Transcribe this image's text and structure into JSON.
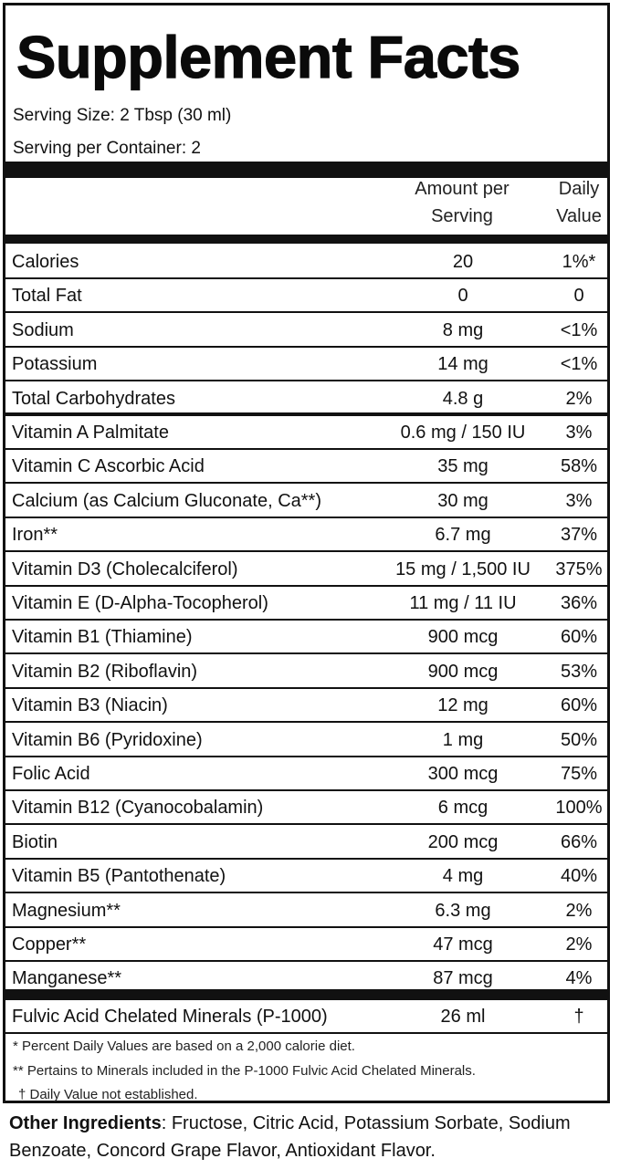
{
  "title": "Supplement Facts",
  "serving_size": "Serving Size: 2 Tbsp  (30 ml)",
  "servings_per_container": "Serving per Container: 2",
  "headers": {
    "amount_line1": "Amount per",
    "amount_line2": "Serving",
    "dv_line1": "Daily",
    "dv_line2": "Value"
  },
  "rows": [
    {
      "name": "Calories",
      "amount": "20",
      "dv": "1%*"
    },
    {
      "name": "Total Fat",
      "amount": "0",
      "dv": "0"
    },
    {
      "name": "Sodium",
      "amount": "8 mg",
      "dv": "<1%"
    },
    {
      "name": "Potassium",
      "amount": "14 mg",
      "dv": "<1%"
    },
    {
      "name": "Total Carbohydrates",
      "amount": "4.8 g",
      "dv": "2%"
    },
    {
      "name": "Vitamin A Palmitate",
      "amount": "0.6 mg / 150 IU",
      "dv": "3%"
    },
    {
      "name": "Vitamin C Ascorbic Acid",
      "amount": "35 mg",
      "dv": "58%"
    },
    {
      "name": "Calcium (as Calcium Gluconate, Ca**)",
      "amount": "30 mg",
      "dv": "3%"
    },
    {
      "name": "Iron**",
      "amount": "6.7 mg",
      "dv": "37%"
    },
    {
      "name": "Vitamin D3 (Cholecalciferol)",
      "amount": "15 mg / 1,500 IU",
      "dv": "375%"
    },
    {
      "name": "Vitamin E (D-Alpha-Tocopherol)",
      "amount": "11 mg / 11 IU",
      "dv": "36%"
    },
    {
      "name": "Vitamin B1 (Thiamine)",
      "amount": "900 mcg",
      "dv": "60%"
    },
    {
      "name": "Vitamin B2 (Riboflavin)",
      "amount": "900 mcg",
      "dv": "53%"
    },
    {
      "name": "Vitamin B3 (Niacin)",
      "amount": "12 mg",
      "dv": "60%"
    },
    {
      "name": "Vitamin B6 (Pyridoxine)",
      "amount": "1 mg",
      "dv": "50%"
    },
    {
      "name": "Folic Acid",
      "amount": "300 mcg",
      "dv": "75%"
    },
    {
      "name": "Vitamin B12 (Cyanocobalamin)",
      "amount": "6 mcg",
      "dv": "100%"
    },
    {
      "name": "Biotin",
      "amount": "200 mcg",
      "dv": "66%"
    },
    {
      "name": "Vitamin B5 (Pantothenate)",
      "amount": "4 mg",
      "dv": "40%"
    },
    {
      "name": "Magnesium**",
      "amount": "6.3 mg",
      "dv": "2%"
    },
    {
      "name": "Copper**",
      "amount": "47 mcg",
      "dv": "2%"
    },
    {
      "name": "Manganese**",
      "amount": "87 mcg",
      "dv": "4%"
    }
  ],
  "fulvic_row": {
    "name": "Fulvic Acid Chelated Minerals (P-1000)",
    "amount": "26 ml",
    "dv": "†"
  },
  "footnotes": [
    "* Percent Daily Values are based on a 2,000 calorie diet.",
    "** Pertains to Minerals included in the P-1000 Fulvic Acid Chelated Minerals.",
    "† Daily Value not established."
  ],
  "other_ingredients": {
    "label": "Other Ingredients",
    "text": ": Fructose, Citric Acid, Potassium Sorbate, Sodium Benzoate, Concord Grape Flavor, Antioxidant Flavor."
  }
}
